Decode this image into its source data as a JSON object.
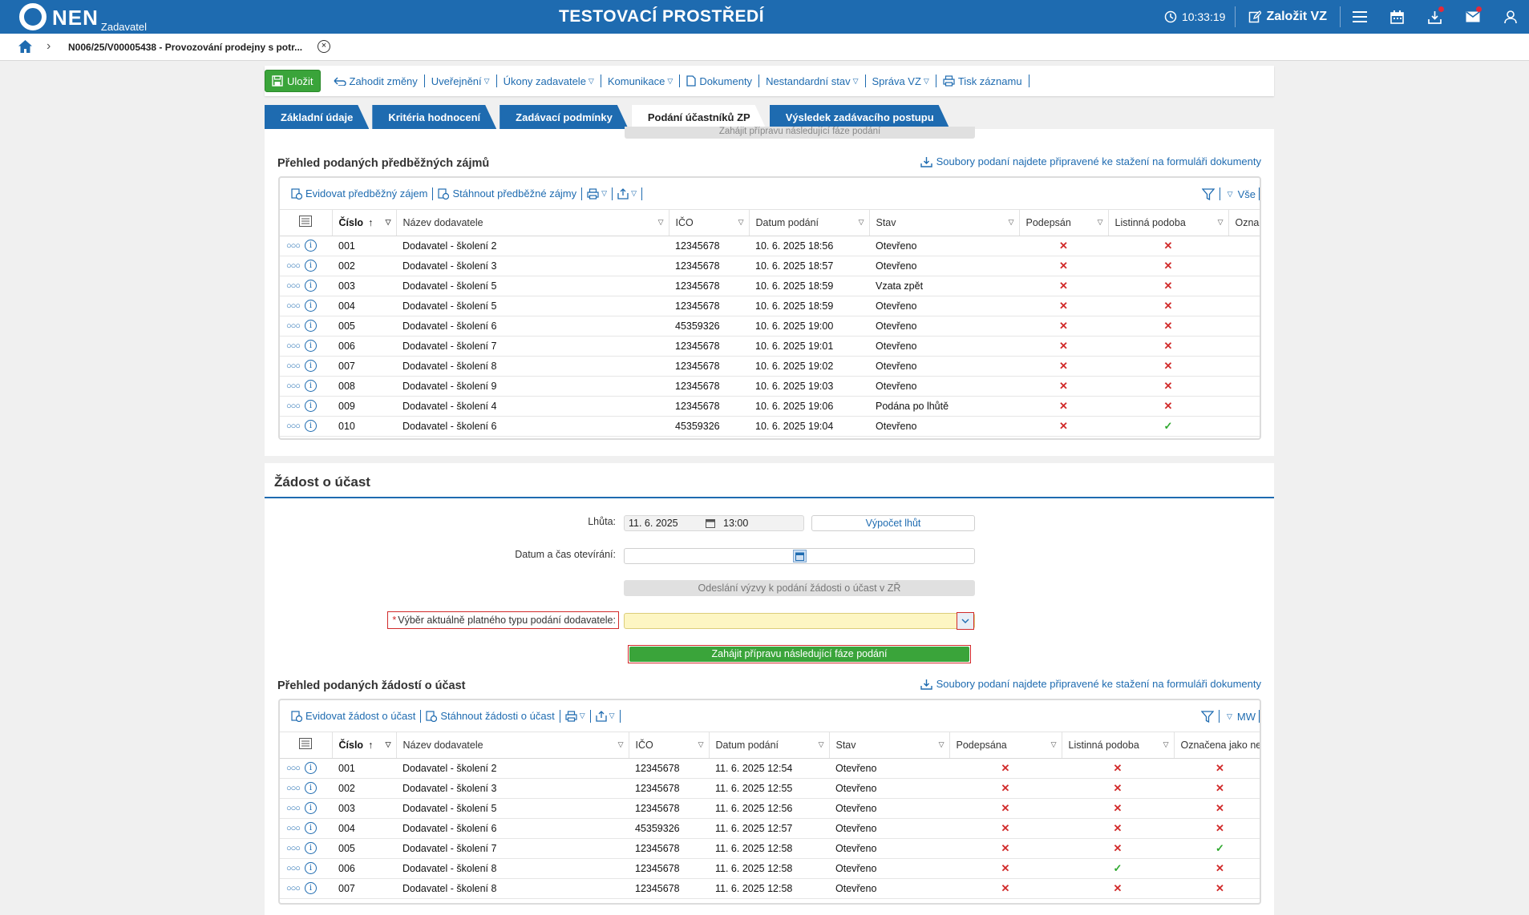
{
  "topbar": {
    "brand": "NEN",
    "role": "Zadavatel",
    "env_title": "TESTOVACÍ PROSTŘEDÍ",
    "time": "10:33:19",
    "create_label": "Založit VZ",
    "accent": "#1e6bb0"
  },
  "breadcrumb": {
    "item": "N006/25/V00005438 - Provozování prodejny s potr..."
  },
  "toolbar": {
    "save": "Uložit",
    "discard": "Zahodit změny",
    "publish": "Uveřejnění",
    "acts": "Úkony zadavatele",
    "communication": "Komunikace",
    "documents": "Dokumenty",
    "nonstandard": "Nestandardní stav",
    "manage": "Správa VZ",
    "print": "Tisk záznamu"
  },
  "tabs": [
    {
      "label": "Základní údaje"
    },
    {
      "label": "Kritéria hodnocení"
    },
    {
      "label": "Zadávací podmínky"
    },
    {
      "label": "Podání účastníků ZP"
    },
    {
      "label": "Výsledek zadávacího postupu"
    }
  ],
  "top_ghost_button": "Zahájit přípravu následující fáze podání",
  "interest": {
    "title": "Přehled podaných předběžných zájmů",
    "download_link": "Soubory podaní najdete připravené ke stažení na formuláři dokumenty",
    "tool_register": "Evidovat předběžný zájem",
    "tool_download": "Stáhnout předběžné zájmy",
    "filter_label": "Vše",
    "columns": [
      "Číslo",
      "Název dodavatele",
      "IČO",
      "Datum podání",
      "Stav",
      "Podepsán",
      "Listinná podoba",
      "Označe"
    ],
    "rows": [
      {
        "num": "001",
        "name": "Dodavatel - školení 2",
        "ico": "12345678",
        "date": "10. 6. 2025 18:56",
        "state": "Otevřeno",
        "signed": false,
        "paper": false
      },
      {
        "num": "002",
        "name": "Dodavatel - školení 3",
        "ico": "12345678",
        "date": "10. 6. 2025 18:57",
        "state": "Otevřeno",
        "signed": false,
        "paper": false
      },
      {
        "num": "003",
        "name": "Dodavatel - školení 5",
        "ico": "12345678",
        "date": "10. 6. 2025 18:59",
        "state": "Vzata zpět",
        "signed": false,
        "paper": false
      },
      {
        "num": "004",
        "name": "Dodavatel - školení 5",
        "ico": "12345678",
        "date": "10. 6. 2025 18:59",
        "state": "Otevřeno",
        "signed": false,
        "paper": false
      },
      {
        "num": "005",
        "name": "Dodavatel - školení 6",
        "ico": "45359326",
        "date": "10. 6. 2025 19:00",
        "state": "Otevřeno",
        "signed": false,
        "paper": false
      },
      {
        "num": "006",
        "name": "Dodavatel - školení 7",
        "ico": "12345678",
        "date": "10. 6. 2025 19:01",
        "state": "Otevřeno",
        "signed": false,
        "paper": false
      },
      {
        "num": "007",
        "name": "Dodavatel - školení 8",
        "ico": "12345678",
        "date": "10. 6. 2025 19:02",
        "state": "Otevřeno",
        "signed": false,
        "paper": false
      },
      {
        "num": "008",
        "name": "Dodavatel - školení 9",
        "ico": "12345678",
        "date": "10. 6. 2025 19:03",
        "state": "Otevřeno",
        "signed": false,
        "paper": false
      },
      {
        "num": "009",
        "name": "Dodavatel - školení 4",
        "ico": "12345678",
        "date": "10. 6. 2025 19:06",
        "state": "Podána po lhůtě",
        "signed": false,
        "paper": false
      },
      {
        "num": "010",
        "name": "Dodavatel - školení 6",
        "ico": "45359326",
        "date": "10. 6. 2025 19:04",
        "state": "Otevřeno",
        "signed": false,
        "paper": true
      }
    ]
  },
  "request": {
    "section_title": "Žádost o účast",
    "deadline_label": "Lhůta:",
    "deadline_date": "11. 6. 2025",
    "deadline_time": "13:00",
    "calc_button": "Výpočet lhůt",
    "opening_label": "Datum a čas otevírání:",
    "opening_value": "",
    "send_button": "Odeslání výzvy k podání žádosti o účast v ZŘ",
    "type_label": "Výběr aktuálně platného typu podání dodavatele:",
    "type_value": "",
    "start_button": "Zahájit přípravu následující fáze podání"
  },
  "applications": {
    "title": "Přehled podaných žádostí o účast",
    "download_link": "Soubory podaní najdete připravené ke stažení na formuláři dokumenty",
    "tool_register": "Evidovat žádost o účast",
    "tool_download": "Stáhnout žádosti o účast",
    "filter_label": "MW",
    "columns": [
      "Číslo",
      "Název dodavatele",
      "IČO",
      "Datum podání",
      "Stav",
      "Podepsána",
      "Listinná podoba",
      "Označena jako ne"
    ],
    "rows": [
      {
        "num": "001",
        "name": "Dodavatel - školení 2",
        "ico": "12345678",
        "date": "11. 6. 2025 12:54",
        "state": "Otevřeno",
        "signed": false,
        "paper": false,
        "marked": false
      },
      {
        "num": "002",
        "name": "Dodavatel - školení 3",
        "ico": "12345678",
        "date": "11. 6. 2025 12:55",
        "state": "Otevřeno",
        "signed": false,
        "paper": false,
        "marked": false
      },
      {
        "num": "003",
        "name": "Dodavatel - školení 5",
        "ico": "12345678",
        "date": "11. 6. 2025 12:56",
        "state": "Otevřeno",
        "signed": false,
        "paper": false,
        "marked": false
      },
      {
        "num": "004",
        "name": "Dodavatel - školení 6",
        "ico": "45359326",
        "date": "11. 6. 2025 12:57",
        "state": "Otevřeno",
        "signed": false,
        "paper": false,
        "marked": false
      },
      {
        "num": "005",
        "name": "Dodavatel - školení 7",
        "ico": "12345678",
        "date": "11. 6. 2025 12:58",
        "state": "Otevřeno",
        "signed": false,
        "paper": false,
        "marked": true
      },
      {
        "num": "006",
        "name": "Dodavatel - školení 8",
        "ico": "12345678",
        "date": "11. 6. 2025 12:58",
        "state": "Otevřeno",
        "signed": false,
        "paper": true,
        "marked": false
      },
      {
        "num": "007",
        "name": "Dodavatel - školení 8",
        "ico": "12345678",
        "date": "11. 6. 2025 12:58",
        "state": "Otevřeno",
        "signed": false,
        "paper": false,
        "marked": false
      }
    ]
  }
}
